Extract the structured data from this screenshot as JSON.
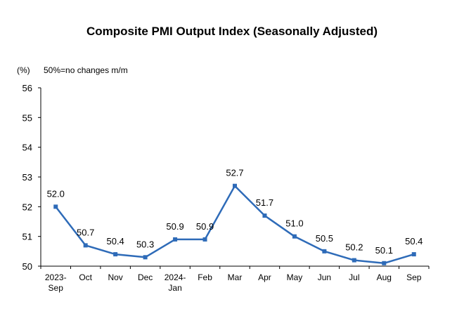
{
  "chart_data": {
    "type": "line",
    "title": "Composite PMI Output Index (Seasonally Adjusted)",
    "ylabel": "(%)",
    "annotation": "50%=no changes m/m",
    "categories": [
      [
        "2023-",
        "Sep"
      ],
      [
        "Oct"
      ],
      [
        "Nov"
      ],
      [
        "Dec"
      ],
      [
        "2024-",
        "Jan"
      ],
      [
        "Feb"
      ],
      [
        "Mar"
      ],
      [
        "Apr"
      ],
      [
        "May"
      ],
      [
        "Jun"
      ],
      [
        "Jul"
      ],
      [
        "Aug"
      ],
      [
        "Sep"
      ]
    ],
    "values": [
      52.0,
      50.7,
      50.4,
      50.3,
      50.9,
      50.9,
      52.7,
      51.7,
      51.0,
      50.5,
      50.2,
      50.1,
      50.4
    ],
    "value_labels": [
      "52.0",
      "50.7",
      "50.4",
      "50.3",
      "50.9",
      "50.9",
      "52.7",
      "51.7",
      "51.0",
      "50.5",
      "50.2",
      "50.1",
      "50.4"
    ],
    "ylim": [
      50,
      56
    ],
    "yticks": [
      50,
      51,
      52,
      53,
      54,
      55,
      56
    ],
    "grid": false,
    "legend": "none",
    "colors": {
      "line": "#2e6bb8",
      "marker": "#2e6bb8",
      "axis": "#000000"
    }
  }
}
